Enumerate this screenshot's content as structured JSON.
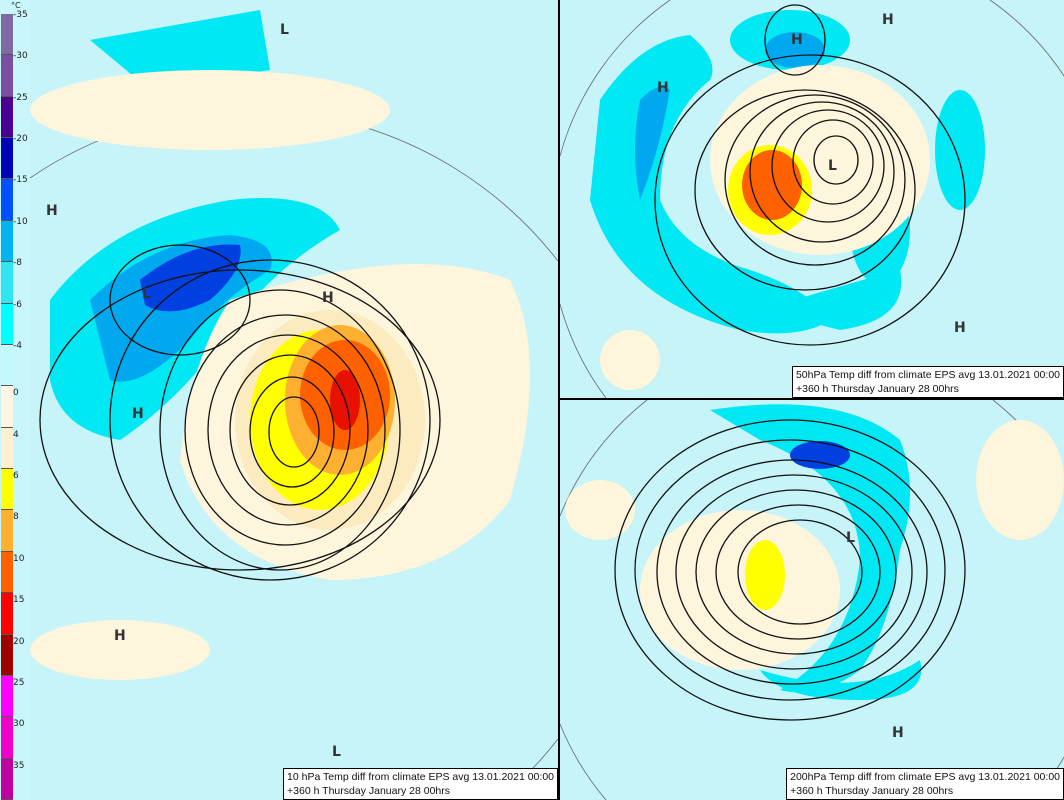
{
  "legend": {
    "unit": "°C",
    "segments": [
      {
        "color": "#7d6aa3"
      },
      {
        "color": "#7a4fa0"
      },
      {
        "color": "#4a0090"
      },
      {
        "color": "#0000b4"
      },
      {
        "color": "#0050ff"
      },
      {
        "color": "#00b4f0"
      },
      {
        "color": "#30e4f0"
      },
      {
        "color": "#00ffff"
      },
      {
        "color": "#c4f8ff"
      },
      {
        "color": "#fdf6e2"
      },
      {
        "color": "#fdf0d2"
      },
      {
        "color": "#ffff00"
      },
      {
        "color": "#ffb030"
      },
      {
        "color": "#ff6000"
      },
      {
        "color": "#ff0000"
      },
      {
        "color": "#a00000"
      },
      {
        "color": "#ff00ff"
      },
      {
        "color": "#f000c8"
      },
      {
        "color": "#c000a0"
      }
    ],
    "labels": [
      "-35",
      "-30",
      "-25",
      "-20",
      "-15",
      "-10",
      "-8",
      "-6",
      "-4",
      "0",
      "4",
      "6",
      "8",
      "10",
      "15",
      "20",
      "25",
      "30",
      "35"
    ]
  },
  "panels": {
    "p10": {
      "caption_line1": "10 hPa Temp diff from climate EPS avg 13.01.2021 00:00",
      "caption_line2": "+360 h Thursday January 28 00hrs",
      "labels": [
        "L",
        "H",
        "L",
        "H",
        "H",
        "H",
        "L"
      ]
    },
    "p50": {
      "caption_line1": "50hPa Temp diff from climate EPS avg 13.01.2021 00:00",
      "caption_line2": "+360 h Thursday January 28 00hrs",
      "labels": [
        "H",
        "H",
        "H",
        "L",
        "H"
      ]
    },
    "p200": {
      "caption_line1": "200hPa Temp diff from climate EPS avg 13.01.2021 00:00",
      "caption_line2": "+360 h Thursday January 28 00hrs",
      "labels": [
        "L",
        "H"
      ]
    }
  },
  "colors": {
    "background": "#c6f4f8",
    "cream": "#fdf5dc",
    "cyan": "#00e8f4",
    "blue": "#00a8f0",
    "darkblue": "#0040e0",
    "yellow": "#ffff00",
    "orange": "#ff7000",
    "red": "#e81000"
  }
}
